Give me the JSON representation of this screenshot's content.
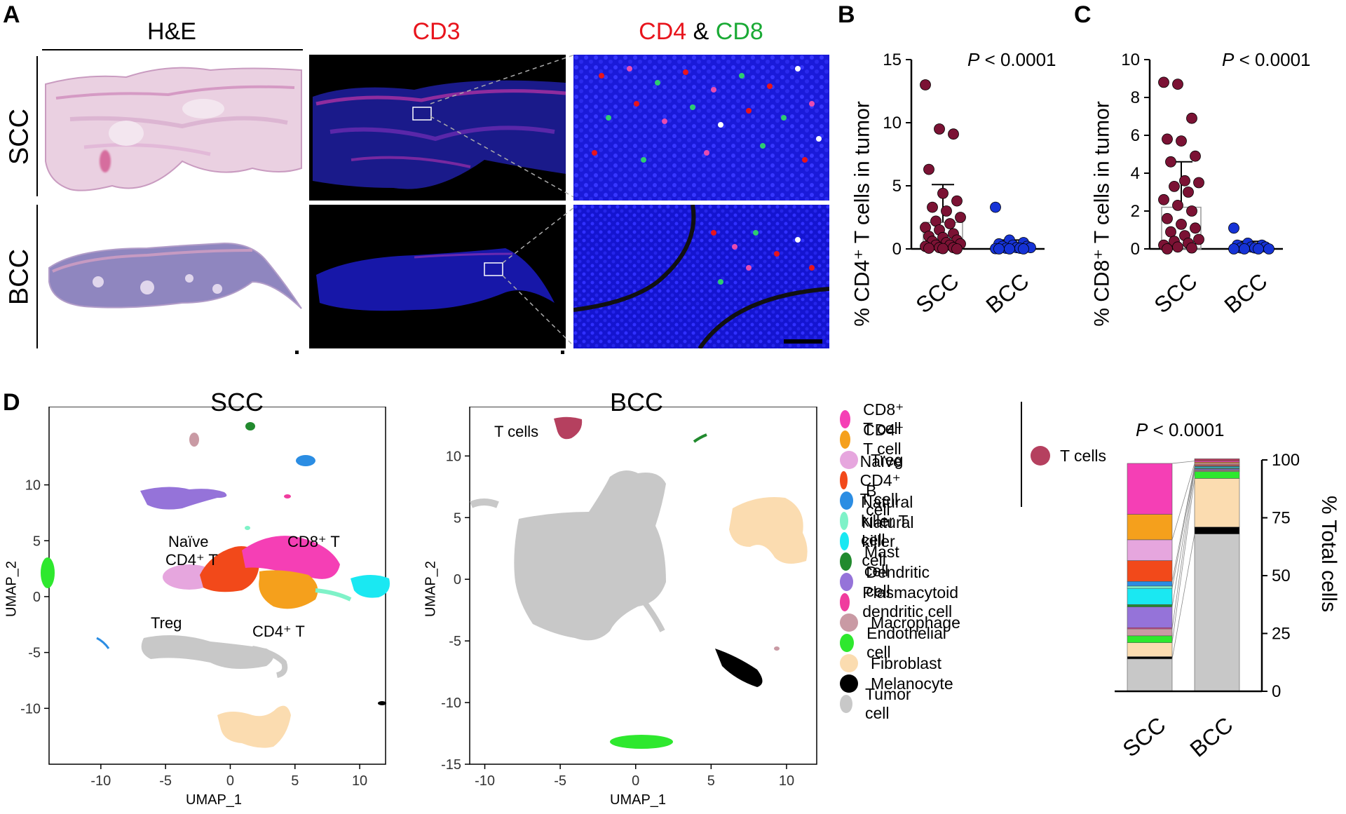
{
  "panels": {
    "A": "A",
    "B": "B",
    "C": "C",
    "D": "D"
  },
  "panelA": {
    "col_he": "H&E",
    "col_cd3": "CD3",
    "col_cd4": "CD4",
    "col_amp": "&",
    "col_cd8": "CD8",
    "row_scc": "SCC",
    "row_bcc": "BCC",
    "colors": {
      "cd3": "#e8141c",
      "cd4": "#e8141c",
      "cd8": "#1aaa35"
    }
  },
  "panelB": {
    "pvalue_p": "P",
    "pvalue_rest": " < 0.0001",
    "ylabel": "% CD4⁺ T cells in tumor"
  },
  "panelC": {
    "pvalue_p": "P",
    "pvalue_rest": " < 0.0001",
    "ylabel": "% CD8⁺ T cells in tumor"
  },
  "umap_scc": {
    "title": "SCC",
    "xlabel": "UMAP_1",
    "ylabel": "UMAP_2",
    "labels": {
      "naive": "Naïve",
      "naive2": "CD4⁺ T",
      "cd8": "CD8⁺ T",
      "treg": "Treg",
      "cd4": "CD4⁺ T"
    }
  },
  "umap_bcc": {
    "title": "BCC",
    "xlabel": "UMAP_1",
    "ylabel": "UMAP_2",
    "labels": {
      "tcells": "T cells"
    }
  },
  "legend": {
    "tcells_group": "T cells",
    "tcells_color": "#b5405f",
    "items": [
      {
        "label": "CD8⁺ T cell",
        "color": "#f53fb5"
      },
      {
        "label": "CD4⁺ T cell",
        "color": "#f5a01c"
      },
      {
        "label": "Treg",
        "color": "#e6a6de"
      },
      {
        "label": "Naïve CD4⁺ T cell",
        "color": "#f2491a"
      },
      {
        "label": "B cell",
        "color": "#2b8de3"
      },
      {
        "label": "Natural killer T cell",
        "color": "#7ff2c8"
      },
      {
        "label": "Natural killer cell",
        "color": "#1ae8f2"
      },
      {
        "label": "Mast cell",
        "color": "#218a2e"
      },
      {
        "label": "Dendritic cell",
        "color": "#9573d9"
      },
      {
        "label": "Plasmacytoid dendritic cell",
        "color": "#f03c9e"
      },
      {
        "label": "Macrophage",
        "color": "#c99aa4"
      },
      {
        "label": "Endothelial cell",
        "color": "#2ee82e"
      },
      {
        "label": "Fibroblast",
        "color": "#fbdcb0"
      },
      {
        "label": "Melanocyte",
        "color": "#000000"
      },
      {
        "label": "Tumor cell",
        "color": "#c8c8c8"
      }
    ]
  },
  "stacked": {
    "pvalue_p": "P",
    "pvalue_rest": " < 0.0001",
    "ylabel": "% Total cells"
  },
  "chart_data": [
    {
      "type": "scatter",
      "title": "P < 0.0001",
      "ylabel": "% CD4⁺ T cells in tumor",
      "categories": [
        "SCC",
        "BCC"
      ],
      "ylim": [
        0,
        15
      ],
      "yticks": [
        0,
        5,
        10,
        15
      ],
      "bar_means": [
        2.1,
        0.3
      ],
      "error_upper": [
        5.1,
        0.7
      ],
      "series": [
        {
          "name": "SCC",
          "color": "#7b1234",
          "values": [
            13.0,
            9.5,
            9.1,
            6.3,
            4.4,
            3.8,
            3.3,
            3.0,
            2.5,
            2.2,
            2.0,
            1.7,
            1.5,
            1.2,
            1.0,
            0.9,
            0.7,
            0.6,
            0.5,
            0.4,
            0.3,
            0.3,
            0.2,
            0.1,
            0.1,
            0.05,
            0.02,
            0.0
          ]
        },
        {
          "name": "BCC",
          "color": "#1633d6",
          "values": [
            3.3,
            0.7,
            0.5,
            0.4,
            0.3,
            0.2,
            0.2,
            0.1,
            0.1,
            0.05,
            0.05,
            0.02,
            0.0,
            0.0,
            0.0
          ]
        }
      ]
    },
    {
      "type": "scatter",
      "title": "P < 0.0001",
      "ylabel": "% CD8⁺ T cells in tumor",
      "categories": [
        "SCC",
        "BCC"
      ],
      "ylim": [
        0,
        10
      ],
      "yticks": [
        0,
        2,
        4,
        6,
        8,
        10
      ],
      "bar_means": [
        2.2,
        0.2
      ],
      "error_upper": [
        4.6,
        0.4
      ],
      "series": [
        {
          "name": "SCC",
          "color": "#7b1234",
          "values": [
            8.8,
            8.7,
            6.9,
            5.8,
            5.7,
            4.9,
            4.6,
            3.6,
            3.5,
            3.3,
            3.0,
            2.6,
            2.3,
            2.0,
            1.6,
            1.3,
            1.1,
            0.9,
            0.7,
            0.5,
            0.4,
            0.3,
            0.2,
            0.1,
            0.05,
            0.0
          ]
        },
        {
          "name": "BCC",
          "color": "#1633d6",
          "values": [
            1.1,
            0.3,
            0.2,
            0.2,
            0.1,
            0.1,
            0.05,
            0.05,
            0.0,
            0.0,
            0.0,
            0.0
          ]
        }
      ]
    },
    {
      "type": "bar",
      "stacked": true,
      "title": "P < 0.0001",
      "ylabel": "% Total cells",
      "categories": [
        "SCC",
        "BCC"
      ],
      "ylim": [
        0,
        100
      ],
      "yticks": [
        0,
        25,
        50,
        75,
        100
      ],
      "series": [
        {
          "name": "Tumor cell",
          "color": "#c8c8c8",
          "values": [
            14,
            68
          ]
        },
        {
          "name": "Melanocyte",
          "color": "#000000",
          "values": [
            1,
            3
          ]
        },
        {
          "name": "Fibroblast",
          "color": "#fbdcb0",
          "values": [
            6,
            21
          ]
        },
        {
          "name": "Endothelial cell",
          "color": "#2ee82e",
          "values": [
            3,
            3
          ]
        },
        {
          "name": "Macrophage",
          "color": "#c99aa4",
          "values": [
            3,
            0.5
          ]
        },
        {
          "name": "Plasmacytoid dendritic cell",
          "color": "#f03c9e",
          "values": [
            0.5,
            0.2
          ]
        },
        {
          "name": "Dendritic cell",
          "color": "#9573d9",
          "values": [
            9,
            0.5
          ]
        },
        {
          "name": "Mast cell",
          "color": "#218a2e",
          "values": [
            1,
            0.3
          ]
        },
        {
          "name": "Natural killer cell",
          "color": "#1ae8f2",
          "values": [
            7,
            0.5
          ]
        },
        {
          "name": "Natural killer T cell",
          "color": "#7ff2c8",
          "values": [
            1,
            0.2
          ]
        },
        {
          "name": "B cell",
          "color": "#2b8de3",
          "values": [
            2,
            0.3
          ]
        },
        {
          "name": "Naïve CD4⁺ T cell",
          "color": "#f2491a",
          "values": [
            9,
            0.5
          ]
        },
        {
          "name": "Treg",
          "color": "#e6a6de",
          "values": [
            9,
            0.5
          ]
        },
        {
          "name": "CD4⁺ T cell",
          "color": "#f5a01c",
          "values": [
            11,
            0.5
          ]
        },
        {
          "name": "CD8⁺ T cell",
          "color": "#f53fb5",
          "values": [
            22,
            0.5
          ]
        },
        {
          "name": "T cells",
          "color": "#b5405f",
          "values": [
            0,
            1
          ]
        }
      ]
    },
    {
      "type": "scatter",
      "title": "SCC",
      "xlabel": "UMAP_1",
      "ylabel": "UMAP_2",
      "xlim": [
        -14,
        12
      ],
      "ylim": [
        -15,
        17
      ],
      "xticks": [
        -10,
        -5,
        0,
        5,
        10
      ],
      "yticks": [
        -10,
        -5,
        0,
        5,
        10
      ],
      "annotations": [
        "Naïve CD4⁺ T",
        "CD8⁺ T",
        "Treg",
        "CD4⁺ T"
      ]
    },
    {
      "type": "scatter",
      "title": "BCC",
      "xlabel": "UMAP_1",
      "ylabel": "UMAP_2",
      "xlim": [
        -11,
        12
      ],
      "ylim": [
        -15,
        14
      ],
      "xticks": [
        -10,
        -5,
        0,
        5,
        10
      ],
      "yticks": [
        -15,
        -10,
        -5,
        0,
        5,
        10
      ],
      "annotations": [
        "T cells"
      ]
    }
  ]
}
